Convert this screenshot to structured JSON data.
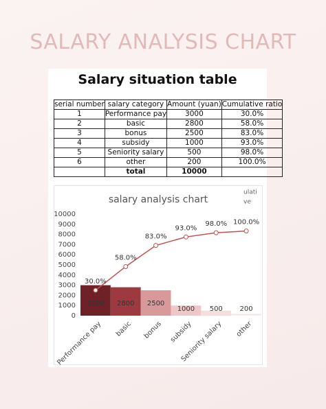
{
  "page_title": "SALARY ANALYSIS CHART",
  "table": {
    "title": "Salary situation table",
    "columns": [
      "serial number",
      "salary category",
      "Amount (yuan)",
      "Cumulative ratio"
    ],
    "rows": [
      [
        1,
        "Performance pay",
        3000,
        "30.0%"
      ],
      [
        2,
        "basic",
        2800,
        "58.0%"
      ],
      [
        3,
        "bonus",
        2500,
        "83.0%"
      ],
      [
        4,
        "subsidy",
        1000,
        "93.0%"
      ],
      [
        5,
        "Seniority salary",
        500,
        "98.0%"
      ],
      [
        6,
        "other",
        200,
        "100.0%"
      ]
    ],
    "total": {
      "label": "total",
      "amount": 10000
    }
  },
  "chart_data": {
    "type": "bar_line",
    "title": "salary analysis chart",
    "annotations": [
      "ulati",
      "ve"
    ],
    "categories": [
      "Performance pay",
      "basic",
      "bonus",
      "subsidy",
      "Seniority salary",
      "other"
    ],
    "series": [
      {
        "type": "bar",
        "values": [
          3000,
          2800,
          2500,
          1000,
          500,
          200
        ],
        "colors": [
          "#6e2227",
          "#9c3a40",
          "#d9999b",
          "#efc7c8",
          "#f6dede",
          "#f9ece6"
        ]
      },
      {
        "type": "line",
        "axis": "y2",
        "color": "#c0504d",
        "values": [
          30,
          58,
          83,
          93,
          98,
          100
        ],
        "value_labels": [
          "30.0%",
          "58.0%",
          "83.0%",
          "93.0%",
          "98.0%",
          "100.0%"
        ]
      }
    ],
    "ylim": [
      0,
      10000
    ],
    "yticks": [
      0,
      1000,
      2000,
      3000,
      4000,
      5000,
      6000,
      7000,
      8000,
      9000,
      10000
    ],
    "y2lim": [
      0,
      120
    ],
    "grid": false
  }
}
